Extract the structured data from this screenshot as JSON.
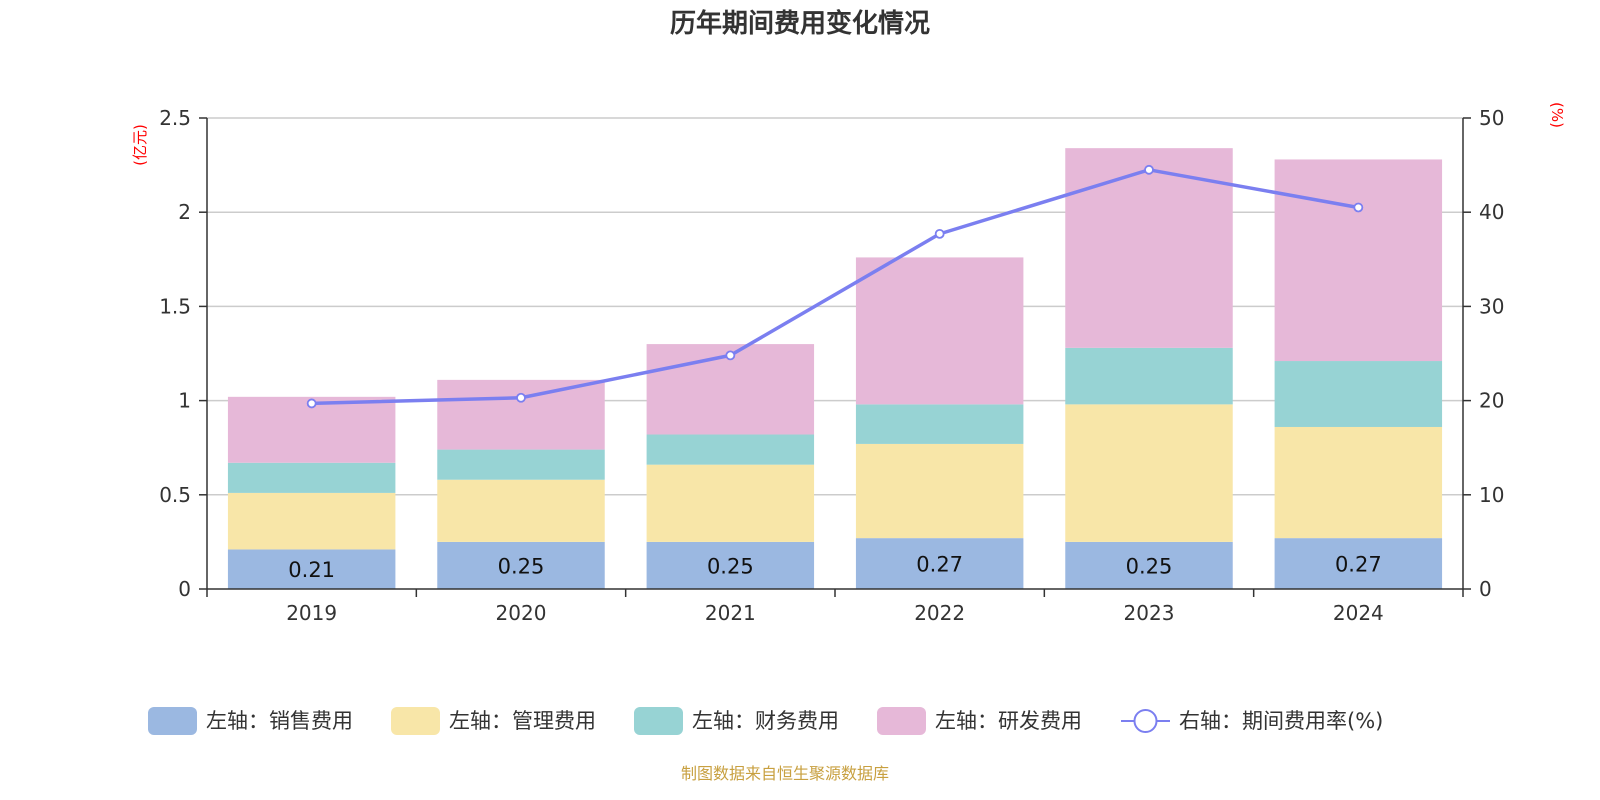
{
  "chart_data": {
    "type": "bar",
    "stacked": true,
    "title": "历年期间费用变化情况",
    "categories": [
      "2019",
      "2020",
      "2021",
      "2022",
      "2023",
      "2024"
    ],
    "left_axis": {
      "unit_label": "(亿元)",
      "ylim": [
        0,
        2.5
      ],
      "ticks": [
        "0",
        "0.5",
        "1",
        "1.5",
        "2",
        "2.5"
      ],
      "tick_values": [
        0,
        0.5,
        1,
        1.5,
        2,
        2.5
      ]
    },
    "right_axis": {
      "unit_label": "(%)",
      "ylim": [
        0,
        50
      ],
      "ticks": [
        "0",
        "10",
        "20",
        "30",
        "40",
        "50"
      ],
      "tick_values": [
        0,
        10,
        20,
        30,
        40,
        50
      ]
    },
    "grid": true,
    "legend_position": "bottom",
    "series": [
      {
        "name": "左轴：销售费用",
        "type": "bar",
        "axis": "left",
        "color": "#9bb8e1",
        "values": [
          0.21,
          0.25,
          0.25,
          0.27,
          0.25,
          0.27
        ],
        "data_labels": [
          "0.21",
          "0.25",
          "0.25",
          "0.27",
          "0.25",
          "0.27"
        ]
      },
      {
        "name": "左轴：管理费用",
        "type": "bar",
        "axis": "left",
        "color": "#f8e6a8",
        "values": [
          0.3,
          0.33,
          0.41,
          0.5,
          0.73,
          0.59
        ]
      },
      {
        "name": "左轴：财务费用",
        "type": "bar",
        "axis": "left",
        "color": "#97d3d4",
        "values": [
          0.16,
          0.16,
          0.16,
          0.21,
          0.3,
          0.35
        ]
      },
      {
        "name": "左轴：研发费用",
        "type": "bar",
        "axis": "left",
        "color": "#e6b8d8",
        "values": [
          0.35,
          0.37,
          0.48,
          0.78,
          1.06,
          1.07
        ]
      },
      {
        "name": "右轴：期间费用率(%)",
        "type": "line",
        "axis": "right",
        "color": "#7b7ff0",
        "values": [
          19.7,
          20.3,
          24.8,
          37.7,
          44.5,
          40.5
        ]
      }
    ],
    "source": "制图数据来自恒生聚源数据库"
  }
}
